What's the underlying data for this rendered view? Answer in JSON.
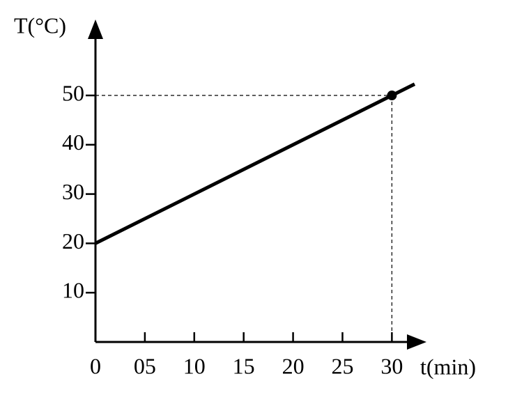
{
  "chart_data": {
    "type": "line",
    "x_label": "t(min)",
    "y_label": "T(°C)",
    "x": [
      0,
      30,
      32.3
    ],
    "values": [
      20,
      50,
      52.3
    ],
    "color": "#000000",
    "point": {
      "x": 30,
      "y": 50
    },
    "xlim": [
      0,
      33.5
    ],
    "ylim": [
      0,
      65.4
    ],
    "xticks": [
      0,
      {
        "value": 5,
        "label": "05"
      },
      10,
      15,
      20,
      25,
      30
    ],
    "yticks": [
      10,
      20,
      30,
      40,
      50
    ],
    "grid": false
  }
}
